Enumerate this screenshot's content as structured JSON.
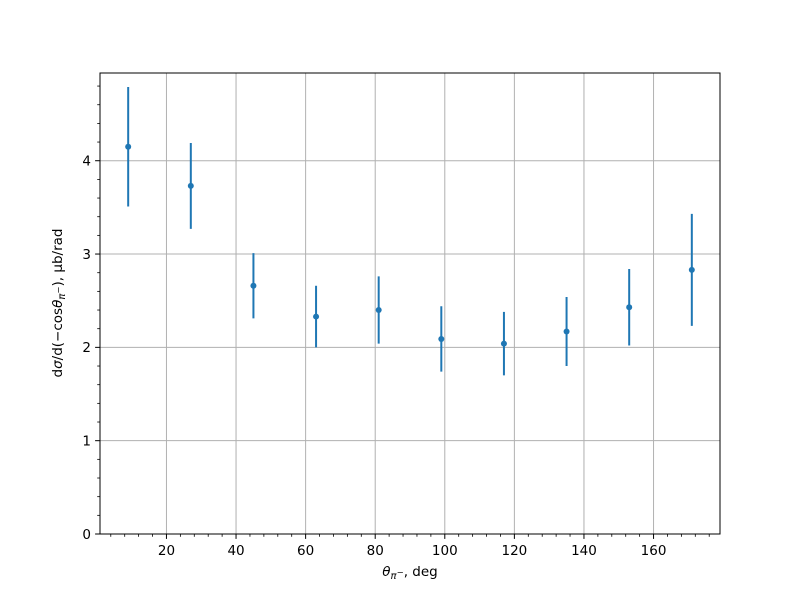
{
  "figure": {
    "background": "#ffffff",
    "accent_color": "#1f77b4",
    "grid_color": "#b0b0b0"
  },
  "chart_data": {
    "type": "scatter",
    "title": "",
    "x": [
      9,
      27,
      45,
      63,
      81,
      99,
      117,
      135,
      153,
      171
    ],
    "y": [
      4.15,
      3.73,
      2.66,
      2.33,
      2.4,
      2.09,
      2.04,
      2.17,
      2.43,
      2.83
    ],
    "yerr": [
      0.64,
      0.46,
      0.35,
      0.33,
      0.36,
      0.35,
      0.34,
      0.37,
      0.41,
      0.6
    ],
    "xlabel": "θπ⁻, deg",
    "ylabel": "dσ/d(−cosθπ⁻), μb/rad",
    "xlim": [
      0.9,
      179.1
    ],
    "ylim": [
      0,
      4.94
    ],
    "xticks": [
      20,
      40,
      60,
      80,
      100,
      120,
      140,
      160
    ],
    "yticks": [
      0,
      1,
      2,
      3,
      4
    ],
    "x_minor_step": 4,
    "y_minor_step": 0.2,
    "grid": true,
    "legend": false,
    "marker": "o",
    "marker_color": "#1f77b4",
    "grid_color": "#b0b0b0"
  },
  "labels": {
    "ylabel_parts": {
      "p1": "d",
      "p2": "σ",
      "p3": "/d(−cos",
      "p4": "θ",
      "p5": "π",
      "p6": "−",
      "p7": "), μb/rad"
    },
    "xlabel_parts": {
      "p1": "θ",
      "p2": "π",
      "p3": "−",
      "p4": ", deg"
    }
  }
}
